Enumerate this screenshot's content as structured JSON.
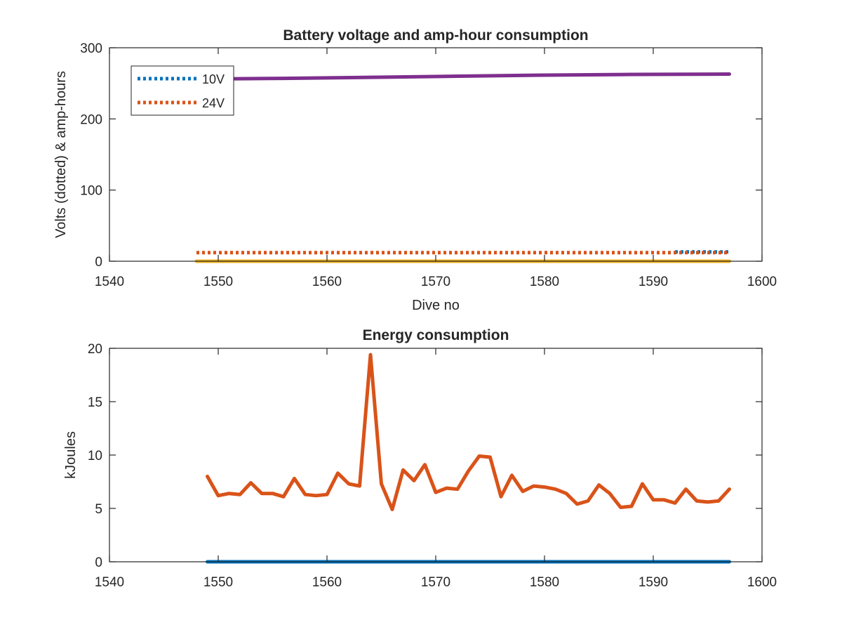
{
  "chart_data": [
    {
      "type": "line",
      "title": "Battery voltage and amp-hour consumption",
      "xlabel": "Dive no",
      "ylabel": "Volts (dotted) & amp-hours",
      "xlim": [
        1540,
        1600
      ],
      "ylim": [
        0,
        300
      ],
      "xticks": [
        1540,
        1550,
        1560,
        1570,
        1580,
        1590,
        1600
      ],
      "yticks": [
        0,
        100,
        200,
        300
      ],
      "legend": {
        "position": "top-left",
        "entries": [
          "10V",
          "24V"
        ]
      },
      "series": [
        {
          "name": "10V",
          "style": "dotted",
          "color": "#0072BD",
          "x": [
            1592,
            1597
          ],
          "y": [
            13,
            13
          ]
        },
        {
          "name": "24V",
          "style": "dotted",
          "color": "#D95319",
          "x": [
            1548,
            1556,
            1564,
            1572,
            1580,
            1588,
            1597
          ],
          "y": [
            12,
            12,
            12,
            12,
            12,
            12,
            12
          ]
        },
        {
          "style": "solid",
          "color": "#EDB120",
          "x": [
            1548,
            1597
          ],
          "y": [
            0,
            0
          ]
        },
        {
          "style": "solid",
          "color": "#7E2F8E",
          "x": [
            1548,
            1556,
            1564,
            1572,
            1580,
            1588,
            1597
          ],
          "y": [
            256,
            257,
            258.5,
            260,
            261.5,
            262.5,
            263
          ]
        }
      ]
    },
    {
      "type": "line",
      "title": "Energy consumption",
      "xlabel": "",
      "ylabel": "kJoules",
      "xlim": [
        1540,
        1600
      ],
      "ylim": [
        0,
        20
      ],
      "xticks": [
        1540,
        1550,
        1560,
        1570,
        1580,
        1590,
        1600
      ],
      "yticks": [
        0,
        5,
        10,
        15,
        20
      ],
      "series": [
        {
          "style": "solid",
          "color": "#0072BD",
          "x": [
            1549,
            1597
          ],
          "y": [
            0,
            0
          ]
        },
        {
          "style": "solid",
          "color": "#D95319",
          "x": [
            1549,
            1550,
            1551,
            1552,
            1553,
            1554,
            1555,
            1556,
            1557,
            1558,
            1559,
            1560,
            1561,
            1562,
            1563,
            1564,
            1565,
            1566,
            1567,
            1568,
            1569,
            1570,
            1571,
            1572,
            1573,
            1574,
            1575,
            1576,
            1577,
            1578,
            1579,
            1580,
            1581,
            1582,
            1583,
            1584,
            1585,
            1586,
            1587,
            1588,
            1589,
            1590,
            1591,
            1592,
            1593,
            1594,
            1595,
            1596,
            1597
          ],
          "y": [
            8.0,
            6.2,
            6.4,
            6.3,
            7.4,
            6.4,
            6.4,
            6.1,
            7.8,
            6.3,
            6.2,
            6.3,
            8.3,
            7.3,
            7.1,
            19.4,
            7.3,
            4.9,
            8.6,
            7.6,
            9.1,
            6.5,
            6.9,
            6.8,
            8.5,
            9.9,
            9.8,
            6.1,
            8.1,
            6.6,
            7.1,
            7.0,
            6.8,
            6.4,
            5.4,
            5.7,
            7.2,
            6.4,
            5.1,
            5.2,
            7.3,
            5.8,
            5.8,
            5.5,
            6.8,
            5.7,
            5.6,
            5.7,
            6.8
          ]
        }
      ]
    }
  ]
}
